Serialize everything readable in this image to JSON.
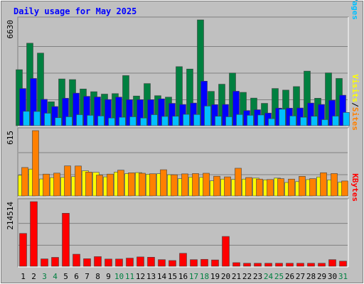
{
  "chart_data": {
    "type": "bar",
    "title": "Daily usage for May 2025",
    "days": [
      "1",
      "2",
      "3",
      "4",
      "5",
      "6",
      "7",
      "8",
      "9",
      "10",
      "11",
      "12",
      "13",
      "14",
      "15",
      "16",
      "17",
      "18",
      "19",
      "20",
      "21",
      "22",
      "23",
      "24",
      "25",
      "26",
      "27",
      "28",
      "29",
      "30",
      "31"
    ],
    "weekend_days": [
      "3",
      "4",
      "10",
      "11",
      "17",
      "18",
      "24",
      "25",
      "31"
    ],
    "panels": [
      {
        "id": "hits-files-pages",
        "ymax_label": "6630",
        "ymax": 6630,
        "legend": [
          {
            "label": "Pages",
            "color": "#00c0ff"
          },
          {
            "label": "/",
            "color": "#000000"
          },
          {
            "label": "Files",
            "color": "#0000ff"
          },
          {
            "label": "/",
            "color": "#000000"
          },
          {
            "label": "Hits",
            "color": "#008040"
          }
        ],
        "series": [
          {
            "name": "Hits",
            "color": "#008040",
            "values": [
              3510,
              5170,
              4550,
              1500,
              2930,
              2890,
              2300,
              2130,
              1980,
              2010,
              3140,
              1860,
              2640,
              1880,
              1790,
              3700,
              3550,
              6630,
              2150,
              2600,
              3300,
              2090,
              1730,
              1400,
              2330,
              2230,
              2450,
              3420,
              1720,
              3310,
              2960
            ]
          },
          {
            "name": "Files",
            "color": "#0000ff",
            "values": [
              2330,
              2960,
              1650,
              1200,
              1720,
              2040,
              1840,
              1800,
              1640,
              1790,
              1630,
              1630,
              1630,
              1680,
              1400,
              1330,
              1420,
              2790,
              1320,
              1330,
              2160,
              950,
              1000,
              790,
              1100,
              1100,
              1110,
              1420,
              1330,
              1590,
              1910
            ]
          },
          {
            "name": "Pages",
            "color": "#00c0ff",
            "values": [
              900,
              890,
              780,
              500,
              560,
              690,
              650,
              610,
              480,
              530,
              560,
              480,
              690,
              580,
              590,
              710,
              700,
              1230,
              590,
              560,
              700,
              650,
              670,
              440,
              1030,
              610,
              530,
              590,
              380,
              600,
              830
            ]
          }
        ]
      },
      {
        "id": "visits-sites",
        "ymax_label": "615",
        "ymax": 615,
        "legend": [
          {
            "label": "Sites",
            "color": "#ff8000"
          },
          {
            "label": "/",
            "color": "#000000"
          },
          {
            "label": "Visits",
            "color": "#ffff00"
          }
        ],
        "series": [
          {
            "name": "Visits",
            "color": "#ffff00",
            "values": [
              195,
              253,
              160,
              173,
              175,
              182,
              237,
              222,
              180,
              225,
              210,
              220,
              204,
              210,
              200,
              163,
              178,
              175,
              143,
              159,
              156,
              159,
              168,
              152,
              168,
              127,
              135,
              154,
              179,
              151,
              130
            ]
          },
          {
            "name": "Sites",
            "color": "#ff8000",
            "values": [
              268,
              615,
              206,
              215,
              283,
              282,
              225,
              197,
              206,
              243,
              218,
              214,
              209,
              247,
              200,
              208,
              211,
              214,
              186,
              180,
              261,
              174,
              159,
              155,
              163,
              159,
              185,
              163,
              219,
              211,
              141
            ]
          }
        ]
      },
      {
        "id": "kbytes",
        "ymax_label": "214514",
        "ymax": 214514,
        "legend": [
          {
            "label": "KBytes",
            "color": "#ff0000"
          }
        ],
        "series": [
          {
            "name": "KBytes",
            "color": "#ff0000",
            "values": [
              109000,
              214514,
              24500,
              29500,
              176000,
              40000,
              25000,
              32000,
              24000,
              24000,
              27000,
              31000,
              30000,
              22000,
              19000,
              43000,
              22000,
              23000,
              21000,
              99000,
              12000,
              10000,
              10000,
              10000,
              10000,
              10000,
              10000,
              10000,
              10000,
              22000,
              17000
            ]
          }
        ]
      }
    ],
    "colors": {
      "background": "#c0c0c0",
      "frame": "#ffffff",
      "title": "#0000ff",
      "axis_text": "#000000",
      "weekend_text": "#008040",
      "grid": "#808080"
    }
  }
}
